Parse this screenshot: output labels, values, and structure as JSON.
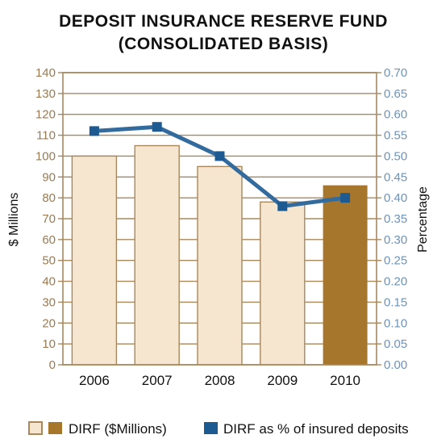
{
  "title_line1": "DEPOSIT INSURANCE RESERVE FUND",
  "title_line2": "(CONSOLIDATED BASIS)",
  "chart_data": {
    "type": "bar",
    "categories": [
      "2006",
      "2007",
      "2008",
      "2009",
      "2010"
    ],
    "ylabel": "$ Millions",
    "y2label": "Percentage",
    "ylim": [
      0,
      140
    ],
    "y2lim": [
      0,
      0.7
    ],
    "yticks": [
      "0",
      "10",
      "20",
      "30",
      "40",
      "50",
      "60",
      "70",
      "80",
      "90",
      "100",
      "110",
      "120",
      "130",
      "140"
    ],
    "y2ticks": [
      "0.00",
      "0.05",
      "0.10",
      "0.15",
      "0.20",
      "0.25",
      "0.30",
      "0.35",
      "0.40",
      "0.45",
      "0.50",
      "0.55",
      "0.60",
      "0.65",
      "0.70"
    ],
    "grid": true,
    "legend_placement": "bottom",
    "series": [
      {
        "name": "DIRF ($Millions)",
        "type": "bar",
        "axis": "left",
        "values": [
          100,
          105,
          95,
          78,
          86
        ],
        "colors": [
          "#f6e6cf",
          "#f6e6cf",
          "#f6e6cf",
          "#f6e6cf",
          "#a7762d"
        ]
      },
      {
        "name": "DIRF as % of insured deposits",
        "type": "line",
        "axis": "right",
        "values": [
          0.56,
          0.57,
          0.5,
          0.38,
          0.4
        ],
        "color": "#336b9e"
      }
    ]
  },
  "colors": {
    "frame": "#a8875c",
    "grid": "#a8875c",
    "bar_light": "#f6e6cf",
    "bar_dark": "#a7762d",
    "line": "#336b9e",
    "marker": "#1d5a92"
  }
}
